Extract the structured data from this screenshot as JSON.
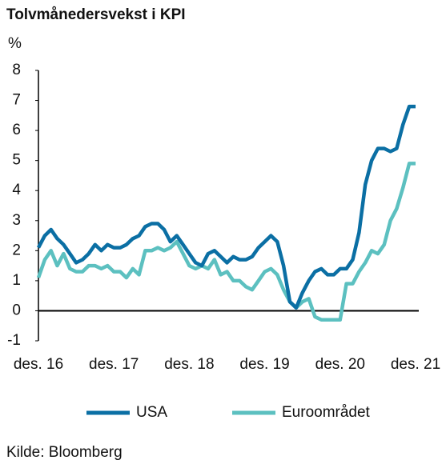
{
  "chart_data": {
    "type": "line",
    "title": "Tolvmånedersvekst i KPI",
    "y_unit": "%",
    "categories": [
      "des. 16",
      null,
      null,
      null,
      null,
      null,
      null,
      null,
      null,
      null,
      null,
      null,
      "des. 17",
      null,
      null,
      null,
      null,
      null,
      null,
      null,
      null,
      null,
      null,
      null,
      "des. 18",
      null,
      null,
      null,
      null,
      null,
      null,
      null,
      null,
      null,
      null,
      null,
      "des. 19",
      null,
      null,
      null,
      null,
      null,
      null,
      null,
      null,
      null,
      null,
      null,
      "des. 20",
      null,
      null,
      null,
      null,
      null,
      null,
      null,
      null,
      null,
      null,
      null,
      "des. 21"
    ],
    "series": [
      {
        "name": "USA",
        "color": "#0b6fa4",
        "values": [
          2.1,
          2.5,
          2.7,
          2.4,
          2.2,
          1.9,
          1.6,
          1.7,
          1.9,
          2.2,
          2.0,
          2.2,
          2.1,
          2.1,
          2.2,
          2.4,
          2.5,
          2.8,
          2.9,
          2.9,
          2.7,
          2.3,
          2.5,
          2.2,
          1.9,
          1.6,
          1.5,
          1.9,
          2.0,
          1.8,
          1.6,
          1.8,
          1.7,
          1.7,
          1.8,
          2.1,
          2.3,
          2.5,
          2.3,
          1.5,
          0.3,
          0.1,
          0.6,
          1.0,
          1.3,
          1.4,
          1.2,
          1.2,
          1.4,
          1.4,
          1.7,
          2.6,
          4.2,
          5.0,
          5.4,
          5.4,
          5.3,
          5.4,
          6.2,
          6.8,
          6.8
        ]
      },
      {
        "name": "Euroområdet",
        "color": "#5cc0c0",
        "values": [
          1.1,
          1.7,
          2.0,
          1.5,
          1.9,
          1.4,
          1.3,
          1.3,
          1.5,
          1.5,
          1.4,
          1.5,
          1.3,
          1.3,
          1.1,
          1.4,
          1.2,
          2.0,
          2.0,
          2.1,
          2.0,
          2.1,
          2.3,
          1.9,
          1.5,
          1.4,
          1.5,
          1.4,
          1.7,
          1.2,
          1.3,
          1.0,
          1.0,
          0.8,
          0.7,
          1.0,
          1.3,
          1.4,
          1.2,
          0.7,
          0.3,
          0.1,
          0.3,
          0.4,
          -0.2,
          -0.3,
          -0.3,
          -0.3,
          -0.3,
          0.9,
          0.9,
          1.3,
          1.6,
          2.0,
          1.9,
          2.2,
          3.0,
          3.4,
          4.1,
          4.9,
          4.9
        ]
      }
    ],
    "ylim": [
      -1,
      8
    ],
    "yticks": [
      -1,
      0,
      1,
      2,
      3,
      4,
      5,
      6,
      7,
      8
    ],
    "grid": false,
    "source": "Kilde: Bloomberg"
  }
}
